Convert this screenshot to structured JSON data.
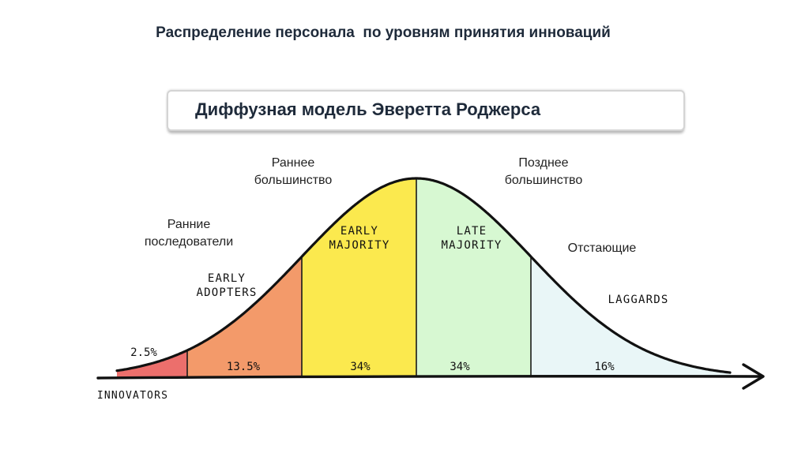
{
  "title": "Распределение персонала  по уровням принятия инноваций",
  "subtitle": "Диффузная модель Эверетта Роджерса",
  "ru_labels": {
    "early_majority": [
      "Раннее",
      "большинство"
    ],
    "late_majority": [
      "Позднее",
      "большинство"
    ],
    "early_adopters": [
      "Ранние",
      "последователи"
    ],
    "laggards": [
      "Отстающие"
    ]
  },
  "chart_data": {
    "type": "area",
    "title": "",
    "xlabel": "",
    "ylabel": "",
    "grid": false,
    "legend": "none",
    "distribution": "normal",
    "segments": [
      {
        "name": "INNOVATORS",
        "percent": 2.5,
        "label": "2.5%",
        "sd_from": -3,
        "sd_to": -2,
        "color": "#ec6f6c"
      },
      {
        "name": "EARLY ADOPTERS",
        "percent": 13.5,
        "label": "13.5%",
        "sd_from": -2,
        "sd_to": -1,
        "color": "#f39a6a"
      },
      {
        "name": "EARLY MAJORITY",
        "percent": 34,
        "label": "34%",
        "sd_from": -1,
        "sd_to": 0,
        "color": "#fbe94e"
      },
      {
        "name": "LATE MAJORITY",
        "percent": 34,
        "label": "34%",
        "sd_from": 0,
        "sd_to": 1,
        "color": "#d7f8d2"
      },
      {
        "name": "LAGGARDS",
        "percent": 16,
        "label": "16%",
        "sd_from": 1,
        "sd_to": 3,
        "color": "#e9f6f7"
      }
    ]
  }
}
